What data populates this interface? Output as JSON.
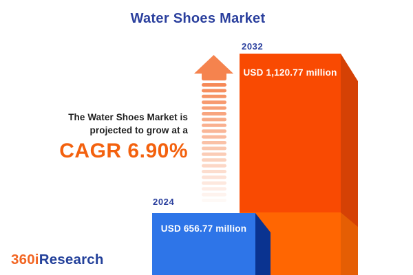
{
  "title": "Water Shoes Market",
  "chart_data": {
    "type": "bar",
    "title": "Water Shoes Market",
    "categories": [
      "2024",
      "2032"
    ],
    "values": [
      656.77,
      1120.77
    ],
    "value_labels": [
      "USD 656.77 million",
      "USD 1,120.77 million"
    ],
    "unit": "USD million",
    "annotation": "The Water Shoes Market is projected to grow at a CAGR 6.90%",
    "cagr_percent": 6.9,
    "orientation": "vertical",
    "legend": "none",
    "style": "3d-blocks-with-growth-arrow"
  },
  "description": {
    "line1": "The Water Shoes Market is",
    "line2": "projected to grow at a",
    "cagr_text": "CAGR 6.90%"
  },
  "logo": {
    "prefix": "360i",
    "suffix": "Research"
  },
  "colors": {
    "brand_blue": "#2A3F9D",
    "text_dark": "#1F1F1F",
    "accent_orange": "#F3610E",
    "bar_2032_front": "#F94A02",
    "bar_2032_side": "#D54105",
    "pedestal_front": "#FF6602",
    "pedestal_side": "#E55E04",
    "bar_2024_front": "#2E75E8",
    "bar_2024_side": "#0A3390",
    "arrow_orange": "#F5834E",
    "logo_orange": "#F26522",
    "logo_blue": "#23409A",
    "value_text": "#FFFFFF"
  }
}
